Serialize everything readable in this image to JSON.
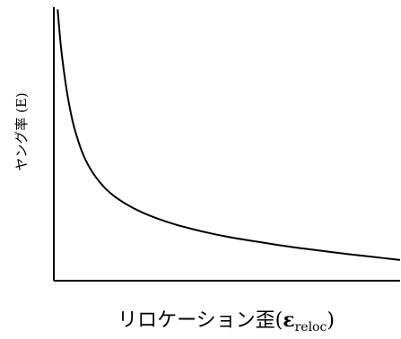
{
  "chart_data": {
    "type": "line",
    "title": "",
    "xlabel_main": "リロケーション歪(",
    "xlabel_symbol": "ε",
    "xlabel_subscript": "reloc",
    "xlabel_close": ")",
    "ylabel": "ヤング率 (E)",
    "grid": false,
    "legend": "none",
    "xlim": [
      0,
      1
    ],
    "ylim": [
      0,
      1
    ],
    "series": [
      {
        "name": "",
        "color": "#000000",
        "x": [
          0.011,
          0.02,
          0.03,
          0.04,
          0.05,
          0.06,
          0.08,
          0.1,
          0.12,
          0.15,
          0.18,
          0.22,
          0.26,
          0.3,
          0.35,
          0.4,
          0.45,
          0.5,
          0.55,
          0.6,
          0.65,
          0.7,
          0.75,
          0.8,
          0.85,
          0.9,
          0.95,
          1.0
        ],
        "y": [
          0.992,
          0.862,
          0.758,
          0.674,
          0.608,
          0.555,
          0.476,
          0.421,
          0.381,
          0.336,
          0.304,
          0.272,
          0.247,
          0.227,
          0.206,
          0.189,
          0.174,
          0.161,
          0.15,
          0.14,
          0.13,
          0.121,
          0.113,
          0.105,
          0.097,
          0.09,
          0.083,
          0.076
        ]
      }
    ]
  }
}
